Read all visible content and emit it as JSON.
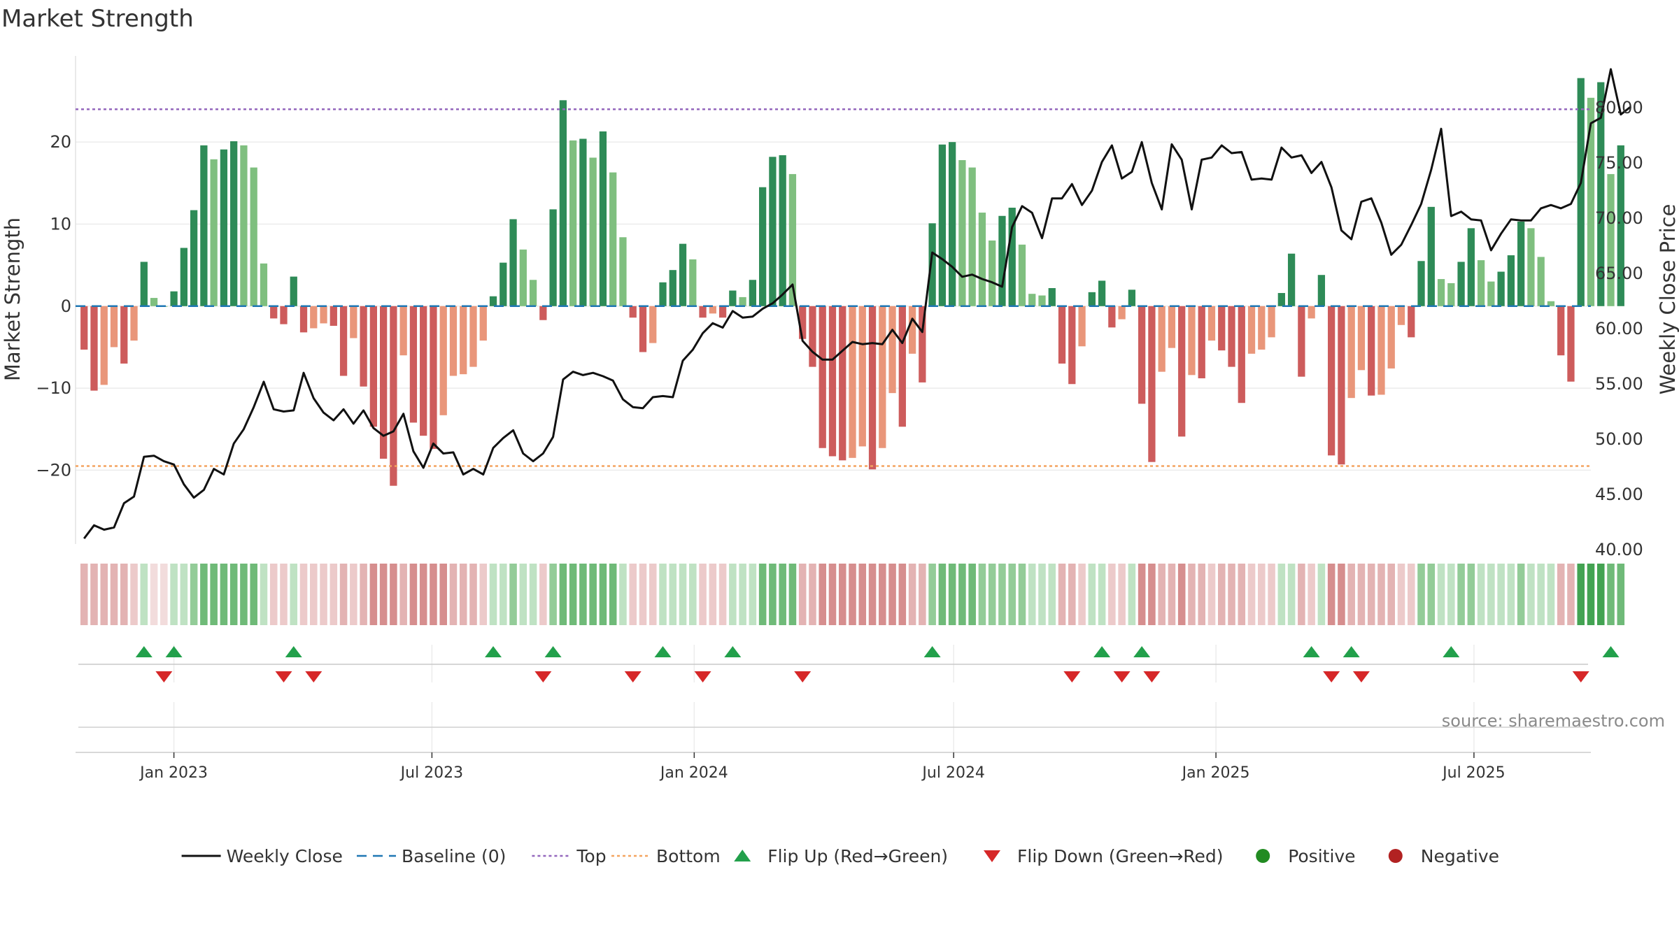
{
  "title": "Market Strength",
  "source": "source: sharemaestro.com",
  "chart_data": {
    "type": "bar",
    "ylabel_left": "Market Strength",
    "ylabel_right": "Weekly Close Price",
    "y_left_range": [
      -29,
      30.5
    ],
    "y_left_ticks": [
      -20,
      -10,
      0,
      10,
      20
    ],
    "y_left_tick_labels": [
      "−20",
      "−10",
      "0",
      "10",
      "20"
    ],
    "y_right_range": [
      40.5,
      84.7
    ],
    "y_right_ticks": [
      40,
      45,
      50,
      55,
      60,
      65,
      70,
      75,
      80
    ],
    "y_right_tick_labels": [
      "40.00",
      "45.00",
      "50.00",
      "55.00",
      "60.00",
      "65.00",
      "70.00",
      "75.00",
      "80.00"
    ],
    "x_range": [
      "2022-10-24",
      "2025-09-21"
    ],
    "x_ticks": [
      "2023-01-01",
      "2023-07-01",
      "2024-01-01",
      "2024-07-01",
      "2025-01-01",
      "2025-07-01"
    ],
    "x_tick_labels": [
      "Jan 2023",
      "Jul 2023",
      "Jan 2024",
      "Jul 2024",
      "Jan 2025",
      "Jul 2025"
    ],
    "start_date": "2022-10-30",
    "top_line": 24,
    "bottom_line": -19.5,
    "baseline": 0,
    "colors": {
      "pos_strong": "#2e8b57",
      "pos_weak": "#7fbf7f",
      "neg_strong": "#cd5c5c",
      "neg_weak": "#e9967a",
      "close": "#111111",
      "baseline": "#1f77b4",
      "top": "#9467bd",
      "bottom": "#f4a460",
      "flip_up": "#22a04b",
      "flip_down": "#d62728",
      "positive": "#228b22",
      "negative": "#b22222"
    },
    "strength": [
      -5.3,
      -10.3,
      -9.6,
      -5,
      -7,
      -4.2,
      5.4,
      1,
      0,
      1.8,
      7.1,
      11.7,
      19.6,
      17.9,
      19.1,
      20.1,
      19.6,
      16.9,
      5.2,
      -1.5,
      -2.2,
      3.6,
      -3.2,
      -2.7,
      -2.1,
      -2.4,
      -8.5,
      -3.9,
      -9.8,
      -14.7,
      -18.6,
      -21.9,
      -6,
      -14.2,
      -15.8,
      -17.4,
      -13.3,
      -8.5,
      -8.3,
      -7.4,
      -4.2,
      1.2,
      5.3,
      10.6,
      6.9,
      3.2,
      -1.7,
      11.8,
      25.1,
      20.2,
      20.4,
      18.1,
      21.3,
      16.3,
      8.4,
      -1.4,
      -5.6,
      -4.5,
      2.9,
      4.4,
      7.6,
      5.7,
      -1.4,
      -0.9,
      -1.4,
      1.9,
      1.1,
      3.2,
      14.5,
      18.2,
      18.4,
      16.1,
      -4,
      -7.4,
      -17.3,
      -18.3,
      -18.8,
      -18.5,
      -17.1,
      -19.9,
      -17.3,
      -10.6,
      -14.7,
      -5.8,
      -9.3,
      10.1,
      19.7,
      20,
      17.8,
      16.9,
      11.4,
      8,
      11,
      12,
      7.5,
      1.5,
      1.3,
      2.2,
      -7,
      -9.5,
      -4.9,
      1.7,
      3.1,
      -2.6,
      -1.6,
      2,
      -11.9,
      -19,
      -8,
      -5.1,
      -15.9,
      -8.4,
      -8.8,
      -4.2,
      -5.4,
      -7.4,
      -11.8,
      -5.8,
      -5.3,
      -3.8,
      1.6,
      6.4,
      -8.6,
      -1.5,
      3.8,
      -18.2,
      -19.3,
      -11.2,
      -7.8,
      -10.9,
      -10.8,
      -7.6,
      -2.3,
      -3.8,
      5.5,
      12.1,
      3.3,
      2.8,
      5.4,
      9.5,
      5.6,
      3,
      4.2,
      6.2,
      10.3,
      9.5,
      6,
      0.6,
      -6,
      -9.2,
      27.8,
      25.4,
      27.3,
      16.1,
      19.6
    ],
    "close": [
      41,
      42.2,
      41.8,
      42,
      44.2,
      44.8,
      48.4,
      48.5,
      48,
      47.7,
      45.9,
      44.7,
      45.4,
      47.3,
      46.8,
      49.6,
      50.9,
      52.9,
      55.2,
      52.7,
      52.5,
      52.6,
      56,
      53.7,
      52.4,
      51.7,
      52.7,
      51.4,
      52.6,
      51,
      50.3,
      50.7,
      52.3,
      48.9,
      47.4,
      49.6,
      48.7,
      48.8,
      46.8,
      47.3,
      46.8,
      49.2,
      50.1,
      50.8,
      48.7,
      48,
      48.7,
      50.2,
      55.4,
      56.1,
      55.8,
      56,
      55.7,
      55.3,
      53.6,
      52.9,
      52.8,
      53.8,
      53.9,
      53.8,
      57.1,
      58.1,
      59.6,
      60.5,
      60.1,
      61.6,
      61,
      61.1,
      61.8,
      62.3,
      63.1,
      64,
      58.9,
      57.9,
      57.2,
      57.2,
      58,
      58.8,
      58.6,
      58.7,
      58.6,
      59.9,
      58.7,
      60.9,
      59.7,
      66.9,
      66.3,
      65.6,
      64.7,
      64.9,
      64.5,
      64.2,
      63.8,
      69.2,
      71.1,
      70.5,
      68.2,
      71.8,
      71.8,
      73.1,
      71.2,
      72.5,
      75.1,
      76.6,
      73.6,
      74.2,
      76.9,
      73.2,
      70.8,
      76.7,
      75.3,
      70.8,
      75.3,
      75.5,
      76.6,
      75.9,
      76,
      73.5,
      73.6,
      73.5,
      76.4,
      75.5,
      75.7,
      74.1,
      75.1,
      72.8,
      68.9,
      68.1,
      71.5,
      71.8,
      69.6,
      66.7,
      67.6,
      69.4,
      71.3,
      74.4,
      78.1,
      70.2,
      70.6,
      69.9,
      69.8,
      67.1,
      68.6,
      69.9,
      69.8,
      69.8,
      70.9,
      71.2,
      70.9,
      71.3,
      73.2,
      78.6,
      79.1,
      83.5,
      79.4,
      80.1
    ],
    "band_shades": [
      -2,
      -2,
      -2,
      -2,
      -2,
      -1,
      1,
      0,
      0,
      1,
      1,
      2,
      3,
      3,
      3,
      3,
      3,
      3,
      1,
      -1,
      -1,
      1,
      -1,
      -1,
      -1,
      -1,
      -2,
      -1,
      -2,
      -3,
      -3,
      -3,
      -2,
      -3,
      -3,
      -3,
      -3,
      -2,
      -2,
      -2,
      -1,
      1,
      1,
      2,
      1,
      1,
      -1,
      2,
      3,
      3,
      3,
      3,
      3,
      3,
      1,
      -1,
      -1,
      -1,
      1,
      1,
      1,
      1,
      -1,
      -1,
      -1,
      1,
      1,
      1,
      3,
      3,
      3,
      3,
      -2,
      -2,
      -3,
      -3,
      -3,
      -3,
      -3,
      -3,
      -3,
      -3,
      -3,
      -2,
      -2,
      2,
      3,
      3,
      3,
      3,
      2,
      2,
      2,
      2,
      2,
      1,
      1,
      1,
      -2,
      -2,
      -1,
      1,
      1,
      -1,
      -1,
      1,
      -3,
      -3,
      -2,
      -2,
      -3,
      -2,
      -2,
      -1,
      -2,
      -2,
      -2,
      -1,
      -1,
      -1,
      1,
      1,
      -2,
      -1,
      1,
      -3,
      -3,
      -2,
      -2,
      -2,
      -2,
      -2,
      -1,
      -1,
      2,
      2,
      1,
      1,
      2,
      2,
      1,
      1,
      1,
      1,
      2,
      1,
      1,
      1,
      -2,
      -2,
      4,
      4,
      4,
      3,
      3
    ],
    "flips_up": [
      6,
      9,
      21,
      41,
      47,
      58,
      65,
      85,
      102,
      106,
      123,
      127,
      137,
      153
    ],
    "flips_down": [
      8,
      20,
      23,
      46,
      55,
      62,
      72,
      99,
      104,
      107,
      125,
      128,
      150
    ],
    "legend": [
      {
        "label": "Weekly Close",
        "kind": "line-solid",
        "color": "#111111"
      },
      {
        "label": "Baseline (0)",
        "kind": "line-dash",
        "color": "#1f77b4"
      },
      {
        "label": "Top",
        "kind": "line-dot",
        "color": "#9467bd"
      },
      {
        "label": "Bottom",
        "kind": "line-dot",
        "color": "#f4a460"
      },
      {
        "label": "Flip Up (Red→Green)",
        "kind": "tri-up",
        "color": "#22a04b"
      },
      {
        "label": "Flip Down (Green→Red)",
        "kind": "tri-down",
        "color": "#d62728"
      },
      {
        "label": "Positive",
        "kind": "circle",
        "color": "#228b22"
      },
      {
        "label": "Negative",
        "kind": "circle",
        "color": "#b22222"
      }
    ]
  }
}
